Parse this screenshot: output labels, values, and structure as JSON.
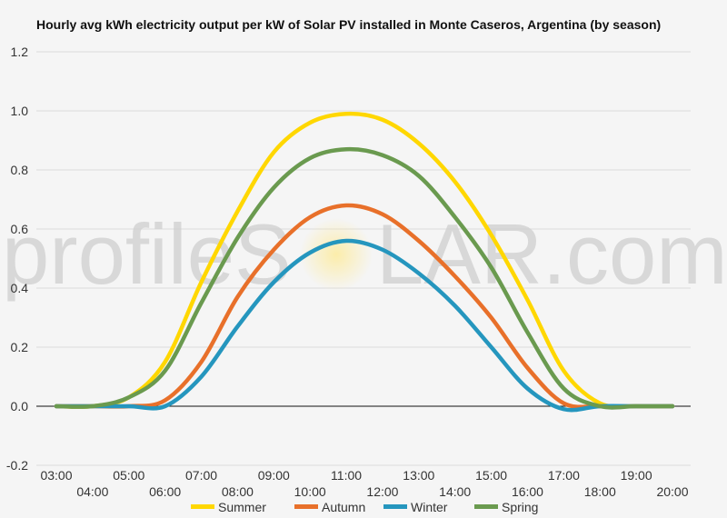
{
  "chart_data": {
    "type": "line",
    "title": "Hourly avg kWh electricity output per kW of Solar PV installed in Monte Caseros, Argentina (by season)",
    "xlabel": "",
    "ylabel": "",
    "x": [
      "03:00",
      "04:00",
      "05:00",
      "06:00",
      "07:00",
      "08:00",
      "09:00",
      "10:00",
      "11:00",
      "12:00",
      "13:00",
      "14:00",
      "15:00",
      "16:00",
      "17:00",
      "18:00",
      "19:00",
      "20:00"
    ],
    "ylim": [
      -0.2,
      1.2
    ],
    "yticks": [
      "-0.2",
      "0.0",
      "0.2",
      "0.4",
      "0.6",
      "0.8",
      "1.0",
      "1.2"
    ],
    "grid": true,
    "legend_position": "bottom",
    "series": [
      {
        "name": "Summer",
        "color": "#ffd700",
        "values": [
          0.0,
          0.0,
          0.03,
          0.15,
          0.42,
          0.66,
          0.86,
          0.96,
          0.99,
          0.97,
          0.89,
          0.76,
          0.58,
          0.36,
          0.12,
          0.01,
          0.0,
          0.0
        ]
      },
      {
        "name": "Autumn",
        "color": "#e8702a",
        "values": [
          0.0,
          0.0,
          0.0,
          0.02,
          0.15,
          0.37,
          0.53,
          0.64,
          0.68,
          0.65,
          0.56,
          0.44,
          0.3,
          0.13,
          0.01,
          0.0,
          0.0,
          0.0
        ]
      },
      {
        "name": "Winter",
        "color": "#2596be",
        "values": [
          0.0,
          0.0,
          0.0,
          0.0,
          0.1,
          0.27,
          0.42,
          0.52,
          0.56,
          0.53,
          0.45,
          0.34,
          0.2,
          0.06,
          -0.01,
          0.0,
          0.0,
          0.0
        ]
      },
      {
        "name": "Spring",
        "color": "#6a9a4f",
        "values": [
          0.0,
          0.0,
          0.03,
          0.12,
          0.35,
          0.57,
          0.74,
          0.84,
          0.87,
          0.85,
          0.78,
          0.64,
          0.47,
          0.25,
          0.06,
          0.0,
          0.0,
          0.0
        ]
      }
    ]
  },
  "watermark": {
    "before": "profileS",
    "after": "LAR.com"
  }
}
